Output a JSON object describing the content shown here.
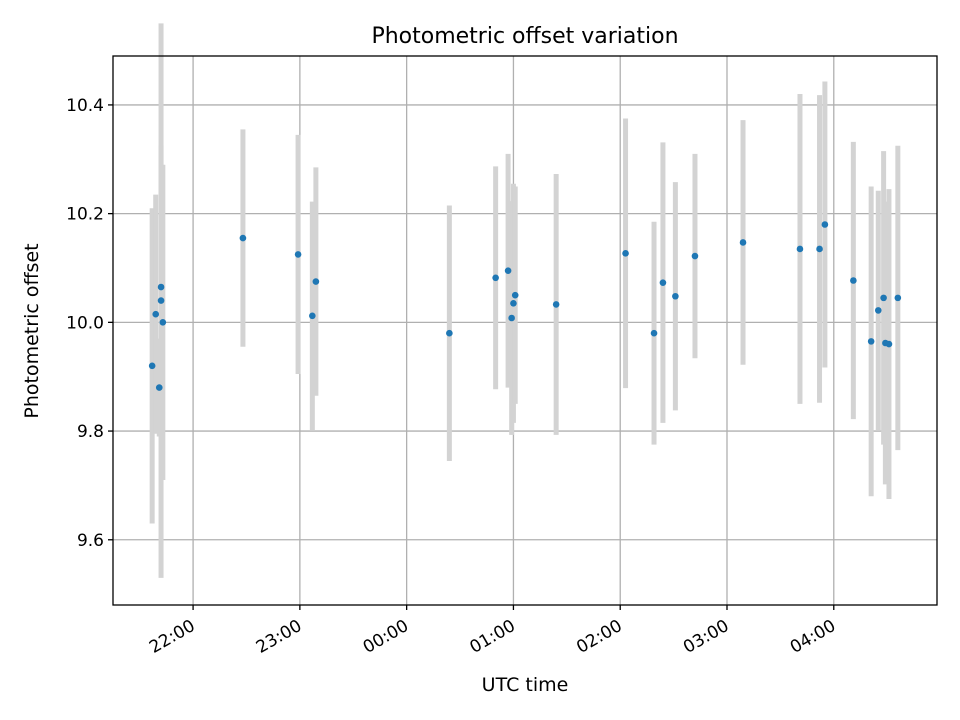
{
  "chart_data": {
    "type": "scatter",
    "title": "Photometric offset variation",
    "xlabel": "UTC time",
    "ylabel": "Photometric offset",
    "x_ticks": [
      "22:00",
      "23:00",
      "00:00",
      "01:00",
      "02:00",
      "03:00",
      "04:00"
    ],
    "y_ticks": [
      "9.6",
      "9.8",
      "10.0",
      "10.2",
      "10.4"
    ],
    "xlim": [
      "21:15",
      "04:58"
    ],
    "ylim": [
      9.48,
      10.49
    ],
    "grid": true,
    "colors": {
      "point": "#1f77b4",
      "errorbar": "#d3d3d3",
      "grid": "#b0b0b0"
    },
    "series": [
      {
        "points": [
          {
            "t": "21:37",
            "y": 9.92,
            "err": 0.29
          },
          {
            "t": "21:39",
            "y": 10.015,
            "err": 0.22
          },
          {
            "t": "21:41",
            "y": 9.88,
            "err": 0.09
          },
          {
            "t": "21:42",
            "y": 10.065,
            "err": 0.26
          },
          {
            "t": "21:42",
            "y": 10.04,
            "err": 0.51
          },
          {
            "t": "21:43",
            "y": 10.0,
            "err": 0.29
          },
          {
            "t": "22:28",
            "y": 10.155,
            "err": 0.2
          },
          {
            "t": "22:59",
            "y": 10.125,
            "err": 0.22
          },
          {
            "t": "23:07",
            "y": 10.012,
            "err": 0.21
          },
          {
            "t": "23:09",
            "y": 10.075,
            "err": 0.21
          },
          {
            "t": "00:24",
            "y": 9.98,
            "err": 0.235
          },
          {
            "t": "00:50",
            "y": 10.082,
            "err": 0.205
          },
          {
            "t": "00:57",
            "y": 10.095,
            "err": 0.215
          },
          {
            "t": "00:59",
            "y": 10.008,
            "err": 0.215
          },
          {
            "t": "01:00",
            "y": 10.035,
            "err": 0.22
          },
          {
            "t": "01:01",
            "y": 10.05,
            "err": 0.2
          },
          {
            "t": "01:24",
            "y": 10.033,
            "err": 0.24
          },
          {
            "t": "02:03",
            "y": 10.127,
            "err": 0.248
          },
          {
            "t": "02:19",
            "y": 9.98,
            "err": 0.205
          },
          {
            "t": "02:24",
            "y": 10.073,
            "err": 0.258
          },
          {
            "t": "02:31",
            "y": 10.048,
            "err": 0.21
          },
          {
            "t": "02:42",
            "y": 10.122,
            "err": 0.188
          },
          {
            "t": "03:09",
            "y": 10.147,
            "err": 0.225
          },
          {
            "t": "03:41",
            "y": 10.135,
            "err": 0.285
          },
          {
            "t": "03:52",
            "y": 10.135,
            "err": 0.283
          },
          {
            "t": "03:55",
            "y": 10.18,
            "err": 0.263
          },
          {
            "t": "04:11",
            "y": 10.077,
            "err": 0.255
          },
          {
            "t": "04:21",
            "y": 9.965,
            "err": 0.285
          },
          {
            "t": "04:25",
            "y": 10.022,
            "err": 0.22
          },
          {
            "t": "04:28",
            "y": 10.045,
            "err": 0.27
          },
          {
            "t": "04:29",
            "y": 9.962,
            "err": 0.26
          },
          {
            "t": "04:31",
            "y": 9.96,
            "err": 0.285
          },
          {
            "t": "04:36",
            "y": 10.045,
            "err": 0.28
          }
        ]
      }
    ]
  }
}
